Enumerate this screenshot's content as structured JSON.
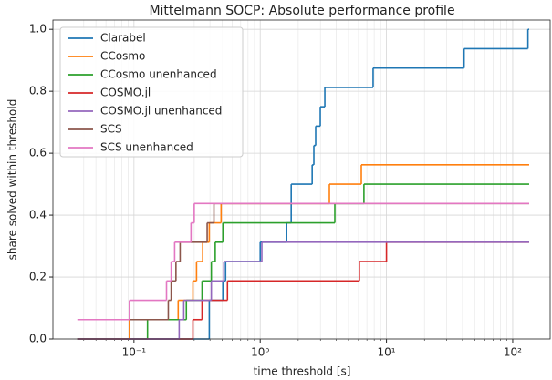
{
  "chart_data": {
    "type": "step",
    "title": "Mittelmann SOCP: Absolute performance profile",
    "xlabel": "time threshold [s]",
    "ylabel": "share solved within threshold",
    "xscale": "log",
    "grid": true,
    "legend": "upper left",
    "xlim": [
      0.0228,
      198
    ],
    "ylim": [
      0,
      1.03
    ],
    "xticks": [
      {
        "value": 0.1,
        "label": "10⁻¹"
      },
      {
        "value": 1,
        "label": "10⁰"
      },
      {
        "value": 10,
        "label": "10¹"
      },
      {
        "value": 100,
        "label": "10²"
      }
    ],
    "yticks": [
      {
        "value": 0,
        "label": "0.0"
      },
      {
        "value": 0.2,
        "label": "0.2"
      },
      {
        "value": 0.4,
        "label": "0.4"
      },
      {
        "value": 0.6,
        "label": "0.6"
      },
      {
        "value": 0.8,
        "label": "0.8"
      },
      {
        "value": 1,
        "label": "1.0"
      }
    ],
    "series": [
      {
        "name": "Clarabel",
        "color": "#1f77b4",
        "x": [
          0.0356,
          0.395,
          0.506,
          0.532,
          1.0,
          1.62,
          1.76,
          2.58,
          2.66,
          2.75,
          2.99,
          3.25,
          7.84,
          41.2,
          132,
          135
        ],
        "values": [
          0,
          0.125,
          0.1875,
          0.25,
          0.3125,
          0.375,
          0.5,
          0.5625,
          0.625,
          0.6875,
          0.75,
          0.8125,
          0.875,
          0.9375,
          1.0,
          1.0
        ]
      },
      {
        "name": "CCosmo",
        "color": "#ff7f0e",
        "x": [
          0.0356,
          0.092,
          0.224,
          0.293,
          0.313,
          0.35,
          0.395,
          0.49,
          3.53,
          6.32,
          135
        ],
        "values": [
          0,
          0.0625,
          0.125,
          0.1875,
          0.25,
          0.3125,
          0.375,
          0.4375,
          0.5,
          0.5625,
          0.5625
        ]
      },
      {
        "name": "CCosmo unenhanced",
        "color": "#2ca02c",
        "x": [
          0.0356,
          0.128,
          0.26,
          0.346,
          0.41,
          0.44,
          0.506,
          3.9,
          6.63,
          135
        ],
        "values": [
          0,
          0.0625,
          0.125,
          0.1875,
          0.25,
          0.3125,
          0.375,
          0.4375,
          0.5,
          0.5
        ]
      },
      {
        "name": "COSMO.jl",
        "color": "#d62728",
        "x": [
          0.0356,
          0.293,
          0.346,
          0.55,
          6.1,
          10,
          135
        ],
        "values": [
          0,
          0.0625,
          0.125,
          0.1875,
          0.25,
          0.3125,
          0.3125
        ]
      },
      {
        "name": "COSMO.jl unenhanced",
        "color": "#9467bd",
        "x": [
          0.0356,
          0.228,
          0.248,
          0.41,
          0.515,
          1.03,
          135
        ],
        "values": [
          0,
          0.0625,
          0.125,
          0.1875,
          0.25,
          0.3125,
          0.3125
        ]
      },
      {
        "name": "SCS",
        "color": "#8c564b",
        "x": [
          0.045,
          0.187,
          0.197,
          0.215,
          0.232,
          0.38,
          0.43,
          135
        ],
        "values": [
          0.0625,
          0.125,
          0.1875,
          0.25,
          0.3125,
          0.375,
          0.4375,
          0.4375
        ]
      },
      {
        "name": "SCS unenhanced",
        "color": "#e377c2",
        "x": [
          0.0356,
          0.092,
          0.181,
          0.197,
          0.21,
          0.283,
          0.3,
          135
        ],
        "values": [
          0.0625,
          0.125,
          0.1875,
          0.25,
          0.3125,
          0.375,
          0.4375,
          0.4375
        ]
      }
    ]
  }
}
